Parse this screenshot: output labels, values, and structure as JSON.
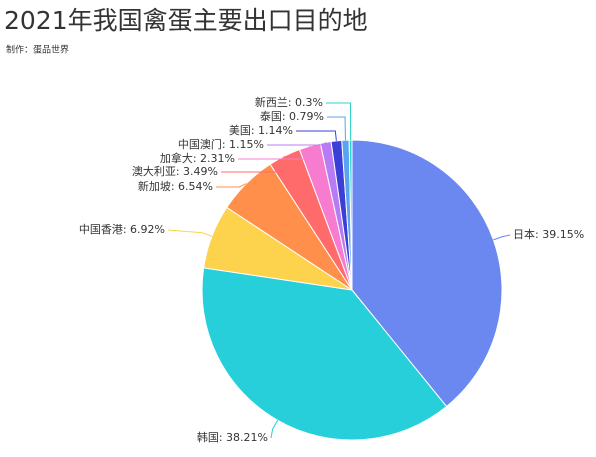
{
  "chart_data": {
    "type": "pie",
    "title": "2021年我国禽蛋主要出口目的地",
    "subtitle": "制作：蛋品世界",
    "values": [
      39.15,
      38.21,
      6.92,
      6.54,
      3.49,
      2.31,
      1.15,
      1.14,
      0.79,
      0.3
    ],
    "value_labels": [
      "日本: 39.15%",
      "韩国: 38.21%",
      "中国香港: 6.92%",
      "新加坡: 6.54%",
      "澳大利亚: 3.49%",
      "加拿大: 2.31%",
      "中国澳门: 1.15%",
      "美国: 1.14%",
      "泰国: 0.79%",
      "新西兰: 0.3%"
    ],
    "colors": [
      "#6b87f0",
      "#26cfd9",
      "#fdd34d",
      "#ff8f4a",
      "#ff6b6b",
      "#f77cd0",
      "#b77cf5",
      "#3b3fd6",
      "#5aa2f2",
      "#2dd6c8"
    ]
  }
}
